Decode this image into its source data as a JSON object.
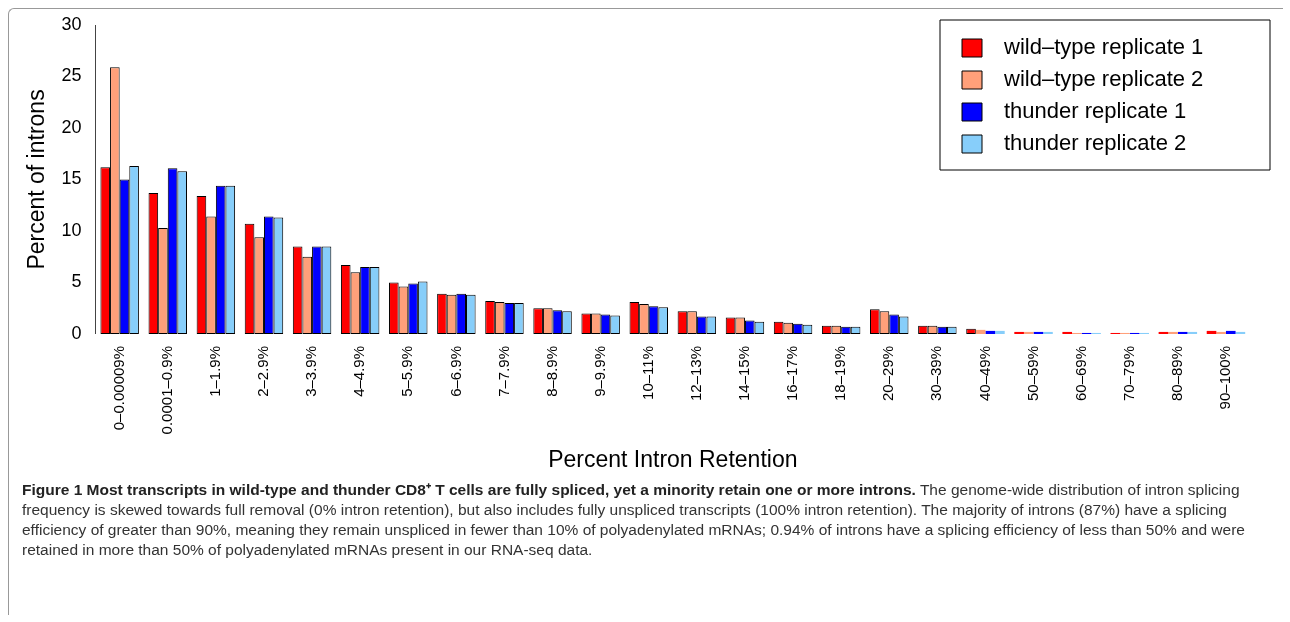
{
  "chart_data": {
    "type": "bar",
    "title": "Figure 1 Most transcripts in wild-type and thunder CD8⁺ T cells are fully spliced, yet a minority retain one or more introns.",
    "xlabel": "Percent Intron Retention",
    "ylabel": "Percent of introns",
    "categories": [
      "0–0.00009%",
      "0.0001–0.9%",
      "1–1.9%",
      "2–2.9%",
      "3–3.9%",
      "4–4.9%",
      "5–5.9%",
      "6–6.9%",
      "7–7.9%",
      "8–8.9%",
      "9–9.9%",
      "10–11%",
      "12–13%",
      "14–15%",
      "16–17%",
      "18–19%",
      "20–29%",
      "30–39%",
      "40–49%",
      "50–59%",
      "60–69%",
      "70–79%",
      "80–89%",
      "90–100%"
    ],
    "series": [
      {
        "name": "wild–type replicate 1",
        "color": "#ff0000",
        "values": [
          16.2,
          13.7,
          13.4,
          10.7,
          8.5,
          6.7,
          5.0,
          3.9,
          3.2,
          2.5,
          2.0,
          3.1,
          2.2,
          1.6,
          1.2,
          0.8,
          2.4,
          0.8,
          0.5,
          0.2,
          0.2,
          0.1,
          0.2,
          0.3
        ]
      },
      {
        "name": "wild–type replicate 2",
        "color": "#ffa07a",
        "values": [
          25.9,
          10.3,
          11.4,
          9.4,
          7.5,
          6.0,
          4.6,
          3.8,
          3.1,
          2.5,
          2.0,
          2.9,
          2.2,
          1.6,
          1.1,
          0.8,
          2.2,
          0.8,
          0.4,
          0.2,
          0.1,
          0.1,
          0.2,
          0.2
        ]
      },
      {
        "name": "thunder replicate 1",
        "color": "#0000ff",
        "values": [
          15.0,
          16.1,
          14.4,
          11.4,
          8.5,
          6.5,
          4.9,
          3.9,
          3.0,
          2.3,
          1.9,
          2.7,
          1.7,
          1.3,
          1.0,
          0.7,
          1.9,
          0.7,
          0.3,
          0.2,
          0.1,
          0.1,
          0.2,
          0.3
        ]
      },
      {
        "name": "thunder replicate 2",
        "color": "#87cefa",
        "values": [
          16.3,
          15.8,
          14.4,
          11.3,
          8.5,
          6.5,
          5.1,
          3.8,
          3.0,
          2.2,
          1.8,
          2.6,
          1.7,
          1.2,
          0.9,
          0.7,
          1.7,
          0.7,
          0.3,
          0.2,
          0.1,
          0.1,
          0.2,
          0.2
        ]
      }
    ],
    "ylim": [
      0,
      30
    ],
    "yticks": [
      0,
      5,
      10,
      15,
      20,
      25,
      30
    ],
    "grid": false,
    "legend": "top right",
    "annotations": [
      "The genome-wide distribution of intron splicing frequency is skewed towards full removal (0% intron retention), but also includes fully unspliced transcripts (100% intron retention). The majority of introns (87%) have a splicing efficiency of greater than 90%, meaning they remain unspliced in fewer than 10% of polyadenylated mRNAs; 0.94% of introns have a splicing efficiency of less than 50% and were retained in more than 50% of polyadenylated mRNAs present in our RNA-seq data."
    ]
  }
}
